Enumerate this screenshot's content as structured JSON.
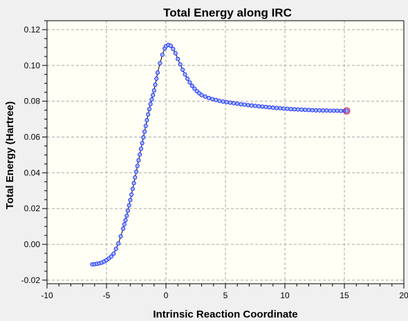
{
  "chart_data": {
    "type": "line",
    "title": "Total Energy along IRC",
    "xlabel": "Intrinsic Reaction Coordinate",
    "ylabel": "Total Energy (Hartree)",
    "xlim": [
      -10,
      20
    ],
    "ylim": [
      -0.022,
      0.125
    ],
    "x_ticks": [
      -10,
      -5,
      0,
      5,
      10,
      15,
      20
    ],
    "x_tick_labels": [
      "-10",
      "-5",
      "0",
      "5",
      "10",
      "15",
      "20"
    ],
    "y_ticks": [
      -0.02,
      0.0,
      0.02,
      0.04,
      0.06,
      0.08,
      0.1,
      0.12
    ],
    "y_tick_labels": [
      "-0.02",
      "0.00",
      "0.02",
      "0.04",
      "0.06",
      "0.08",
      "0.10",
      "0.12"
    ],
    "grid": true,
    "colors": {
      "plot_background": "#fffff5",
      "marker_fill": "#9ec0ff",
      "marker_stroke": "#1a1aff",
      "line": "#000000",
      "highlight": "#d0205a"
    },
    "highlighted_point": {
      "x": 15.2,
      "y": 0.0746
    },
    "series": [
      {
        "x": [
          -6.2,
          -6.0,
          -5.8,
          -5.6,
          -5.4,
          -5.2,
          -5.0,
          -4.8,
          -4.6,
          -4.4,
          -4.2,
          -4.0,
          -3.8,
          -3.6,
          -3.5,
          -3.4,
          -3.3,
          -3.2,
          -3.1,
          -3.0,
          -2.9,
          -2.8,
          -2.7,
          -2.6,
          -2.5,
          -2.4,
          -2.3,
          -2.2,
          -2.1,
          -2.0,
          -1.9,
          -1.8,
          -1.7,
          -1.6,
          -1.5,
          -1.4,
          -1.3,
          -1.2,
          -1.1,
          -1.0,
          -0.9,
          -0.8,
          -0.7,
          -0.5,
          -0.3,
          -0.1,
          0.0,
          0.2,
          0.4,
          0.6,
          0.8,
          1.0,
          1.2,
          1.4,
          1.6,
          1.8,
          2.0,
          2.2,
          2.4,
          2.6,
          2.8,
          3.0,
          3.3,
          3.6,
          3.9,
          4.2,
          4.5,
          4.8,
          5.1,
          5.4,
          5.7,
          6.0,
          6.3,
          6.6,
          6.9,
          7.2,
          7.5,
          7.8,
          8.1,
          8.4,
          8.7,
          9.0,
          9.3,
          9.6,
          9.9,
          10.2,
          10.5,
          10.8,
          11.1,
          11.4,
          11.7,
          12.0,
          12.3,
          12.6,
          12.9,
          13.2,
          13.5,
          13.8,
          14.1,
          14.4,
          14.7,
          15.0,
          15.2
        ],
        "y": [
          -0.0112,
          -0.0111,
          -0.0109,
          -0.0106,
          -0.0102,
          -0.0096,
          -0.0088,
          -0.0079,
          -0.0068,
          -0.0052,
          -0.0025,
          0.0005,
          0.0045,
          0.0088,
          0.0112,
          0.0135,
          0.016,
          0.0188,
          0.0218,
          0.0248,
          0.0278,
          0.031,
          0.0342,
          0.0374,
          0.0406,
          0.0438,
          0.047,
          0.0502,
          0.0534,
          0.0566,
          0.0598,
          0.063,
          0.0662,
          0.0694,
          0.0726,
          0.0756,
          0.0784,
          0.081,
          0.0834,
          0.086,
          0.0892,
          0.0926,
          0.096,
          0.1012,
          0.106,
          0.1095,
          0.1108,
          0.1115,
          0.111,
          0.1092,
          0.1068,
          0.1036,
          0.1006,
          0.0976,
          0.095,
          0.0926,
          0.0905,
          0.0886,
          0.087,
          0.0856,
          0.0844,
          0.0834,
          0.0826,
          0.0818,
          0.0812,
          0.0807,
          0.0802,
          0.0798,
          0.0795,
          0.0792,
          0.0789,
          0.0786,
          0.0783,
          0.0781,
          0.0778,
          0.0776,
          0.0774,
          0.0772,
          0.077,
          0.0768,
          0.0766,
          0.0764,
          0.0762,
          0.0761,
          0.0759,
          0.0758,
          0.0756,
          0.0755,
          0.0754,
          0.0753,
          0.0752,
          0.0751,
          0.075,
          0.0749,
          0.0749,
          0.0748,
          0.0748,
          0.0747,
          0.0747,
          0.0747,
          0.0746,
          0.0746,
          0.0746
        ]
      }
    ]
  }
}
